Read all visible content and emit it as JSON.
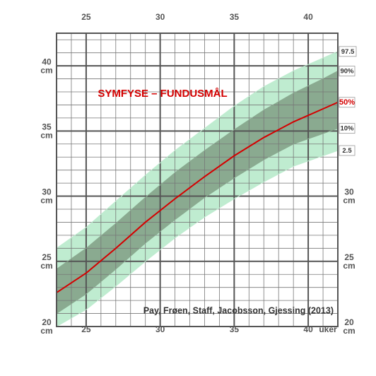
{
  "chart_data": {
    "type": "line",
    "title": "SYMFYSE – FUNDUSMÅL",
    "annotation": "Pay, Frøen, Staff, Jacobsson, Gjessing (2013)",
    "x_label": "uker",
    "y_label": "cm",
    "x": [
      23,
      25,
      27,
      29,
      31,
      33,
      35,
      37,
      39,
      41,
      42
    ],
    "series": [
      {
        "name": "97.5",
        "color": "#bfecd0",
        "values": [
          26.0,
          27.6,
          29.6,
          31.6,
          33.5,
          35.2,
          36.9,
          38.4,
          39.6,
          40.6,
          41.1
        ]
      },
      {
        "name": "90%",
        "color": "#8aaa90",
        "values": [
          24.4,
          26.0,
          27.9,
          29.9,
          31.8,
          33.5,
          35.1,
          36.6,
          37.9,
          39.0,
          39.6
        ]
      },
      {
        "name": "50%",
        "color": "#d40000",
        "values": [
          22.6,
          24.1,
          26.0,
          28.0,
          29.8,
          31.5,
          33.1,
          34.5,
          35.7,
          36.7,
          37.2
        ]
      },
      {
        "name": "10%",
        "color": "#8aaa90",
        "values": [
          21.0,
          22.5,
          24.4,
          26.4,
          28.2,
          29.9,
          31.4,
          32.8,
          34.0,
          34.8,
          35.2
        ]
      },
      {
        "name": "2.5",
        "color": "#bfecd0",
        "values": [
          20.0,
          21.3,
          23.1,
          25.0,
          26.8,
          28.4,
          29.8,
          31.1,
          32.3,
          33.1,
          33.5
        ]
      }
    ],
    "xlim": [
      23,
      42
    ],
    "ylim": [
      20,
      42.5
    ],
    "xticks": [
      25,
      30,
      35,
      40
    ],
    "yticks": [
      20,
      25,
      30,
      35,
      40
    ],
    "grid": true
  }
}
